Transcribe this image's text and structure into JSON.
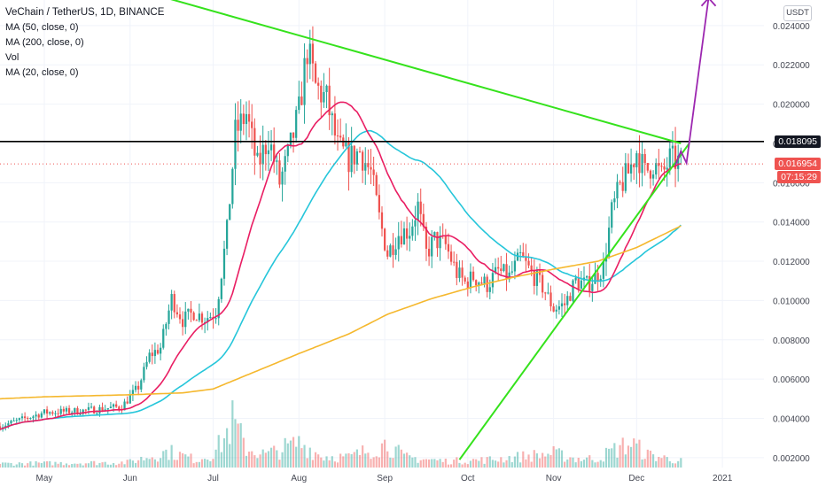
{
  "legend": {
    "title": "VeChain / TetherUS, 1D, BINANCE",
    "ma50": "MA (50, close, 0)",
    "ma200": "MA (200, close, 0)",
    "vol": "Vol",
    "ma20": "MA (20, close, 0)"
  },
  "currency_badge": "USDT",
  "price_tags": {
    "resistance": "0.018095",
    "last": "0.016954",
    "countdown": "07:15:29"
  },
  "colors": {
    "up": "#26a69a",
    "down": "#ef5350",
    "ma20": "#e91e63",
    "ma50": "#26c6da",
    "ma200": "#f5b82e",
    "trend": "#35e21c",
    "resistance": "#000000",
    "projection": "#9c27b0",
    "label_dark": "#131722",
    "label_red": "#ef5350"
  },
  "chart_data": {
    "type": "candlestick",
    "title": "VeChain / TetherUS, 1D, BINANCE",
    "x_ticks": [
      "May",
      "Jun",
      "Jul",
      "Aug",
      "Sep",
      "Oct",
      "Nov",
      "Dec",
      "2021"
    ],
    "x_tick_days": [
      0,
      31,
      61,
      92,
      123,
      153,
      184,
      214,
      245
    ],
    "y_ticks": [
      "0.024000",
      "0.022000",
      "0.020000",
      "0.018000",
      "0.016000",
      "0.014000",
      "0.012000",
      "0.010000",
      "0.008000",
      "0.006000",
      "0.004000",
      "0.002000"
    ],
    "y_tick_values": [
      0.024,
      0.022,
      0.02,
      0.018,
      0.016,
      0.014,
      0.012,
      0.01,
      0.008,
      0.006,
      0.004,
      0.002
    ],
    "ylim": [
      0.0015,
      0.0253
    ],
    "x_days_visible": [
      -16,
      260
    ],
    "price_keypoints": [
      [
        -16,
        0.0036
      ],
      [
        0,
        0.0043
      ],
      [
        15,
        0.0044
      ],
      [
        28,
        0.0046
      ],
      [
        34,
        0.0056
      ],
      [
        38,
        0.0072
      ],
      [
        42,
        0.0076
      ],
      [
        46,
        0.0101
      ],
      [
        50,
        0.009
      ],
      [
        54,
        0.0094
      ],
      [
        58,
        0.0091
      ],
      [
        62,
        0.0094
      ],
      [
        66,
        0.0135
      ],
      [
        69,
        0.0185
      ],
      [
        73,
        0.0195
      ],
      [
        77,
        0.0168
      ],
      [
        81,
        0.0183
      ],
      [
        85,
        0.016
      ],
      [
        88,
        0.0173
      ],
      [
        92,
        0.0196
      ],
      [
        95,
        0.0228
      ],
      [
        98,
        0.0209
      ],
      [
        102,
        0.0202
      ],
      [
        106,
        0.0178
      ],
      [
        110,
        0.0172
      ],
      [
        114,
        0.0176
      ],
      [
        118,
        0.0165
      ],
      [
        121,
        0.0142
      ],
      [
        124,
        0.0124
      ],
      [
        128,
        0.0134
      ],
      [
        132,
        0.0136
      ],
      [
        135,
        0.0148
      ],
      [
        138,
        0.0124
      ],
      [
        141,
        0.0131
      ],
      [
        145,
        0.0128
      ],
      [
        149,
        0.0114
      ],
      [
        152,
        0.0109
      ],
      [
        155,
        0.0112
      ],
      [
        160,
        0.0108
      ],
      [
        164,
        0.0115
      ],
      [
        168,
        0.0112
      ],
      [
        172,
        0.0122
      ],
      [
        176,
        0.0114
      ],
      [
        180,
        0.0107
      ],
      [
        184,
        0.0096
      ],
      [
        188,
        0.0098
      ],
      [
        192,
        0.011
      ],
      [
        196,
        0.0108
      ],
      [
        199,
        0.0112
      ],
      [
        202,
        0.0117
      ],
      [
        205,
        0.0145
      ],
      [
        208,
        0.0158
      ],
      [
        211,
        0.0165
      ],
      [
        214,
        0.0176
      ],
      [
        217,
        0.0165
      ],
      [
        220,
        0.017
      ],
      [
        223,
        0.0163
      ],
      [
        226,
        0.0172
      ],
      [
        230,
        0.017
      ]
    ],
    "vol_keypoints": [
      [
        -16,
        0.06
      ],
      [
        30,
        0.08
      ],
      [
        45,
        0.25
      ],
      [
        55,
        0.12
      ],
      [
        61,
        0.22
      ],
      [
        65,
        0.45
      ],
      [
        68,
        0.72
      ],
      [
        73,
        0.3
      ],
      [
        80,
        0.2
      ],
      [
        92,
        0.38
      ],
      [
        95,
        0.32
      ],
      [
        100,
        0.18
      ],
      [
        110,
        0.16
      ],
      [
        124,
        0.38
      ],
      [
        130,
        0.16
      ],
      [
        145,
        0.1
      ],
      [
        160,
        0.12
      ],
      [
        184,
        0.22
      ],
      [
        192,
        0.14
      ],
      [
        200,
        0.14
      ],
      [
        206,
        0.28
      ],
      [
        212,
        0.38
      ],
      [
        218,
        0.2
      ],
      [
        230,
        0.1
      ]
    ],
    "ma200_keypoints": [
      [
        -16,
        0.005
      ],
      [
        0,
        0.0051
      ],
      [
        30,
        0.0052
      ],
      [
        50,
        0.0053
      ],
      [
        61,
        0.0055
      ],
      [
        80,
        0.0066
      ],
      [
        92,
        0.0073
      ],
      [
        110,
        0.0083
      ],
      [
        124,
        0.0093
      ],
      [
        140,
        0.0101
      ],
      [
        155,
        0.0107
      ],
      [
        170,
        0.0112
      ],
      [
        184,
        0.0116
      ],
      [
        200,
        0.012
      ],
      [
        214,
        0.0127
      ],
      [
        230,
        0.0138
      ]
    ],
    "annotations": {
      "resistance_level": 0.018095,
      "last_price": 0.016954,
      "descending_trendline": [
        [
          -16,
          0.0278
        ],
        [
          230,
          0.018
        ]
      ],
      "ascending_trendline": [
        [
          150,
          0.0019
        ],
        [
          233,
          0.018
        ]
      ],
      "projection_arrow": [
        [
          228,
          0.0169
        ],
        [
          230,
          0.0176
        ],
        [
          232,
          0.017
        ],
        [
          240,
          0.0254
        ]
      ]
    }
  }
}
